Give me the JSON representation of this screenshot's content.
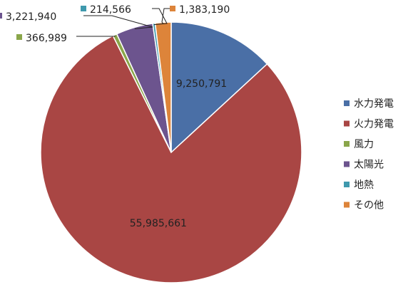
{
  "chart_data": {
    "type": "pie",
    "title": "",
    "categories": [
      "水力発電",
      "火力発電",
      "風力",
      "太陽光",
      "地熱",
      "その他"
    ],
    "values": [
      9250791,
      55985661,
      366989,
      3221940,
      214566,
      1383190
    ],
    "value_labels": [
      "9,250,791",
      "55,985,661",
      "366,989",
      "3,221,940",
      "214,566",
      "1,383,190"
    ],
    "colors": [
      "#4a6fa6",
      "#a94644",
      "#8aa64a",
      "#6c548e",
      "#3f99ad",
      "#dd843a"
    ],
    "legend_position": "right"
  }
}
